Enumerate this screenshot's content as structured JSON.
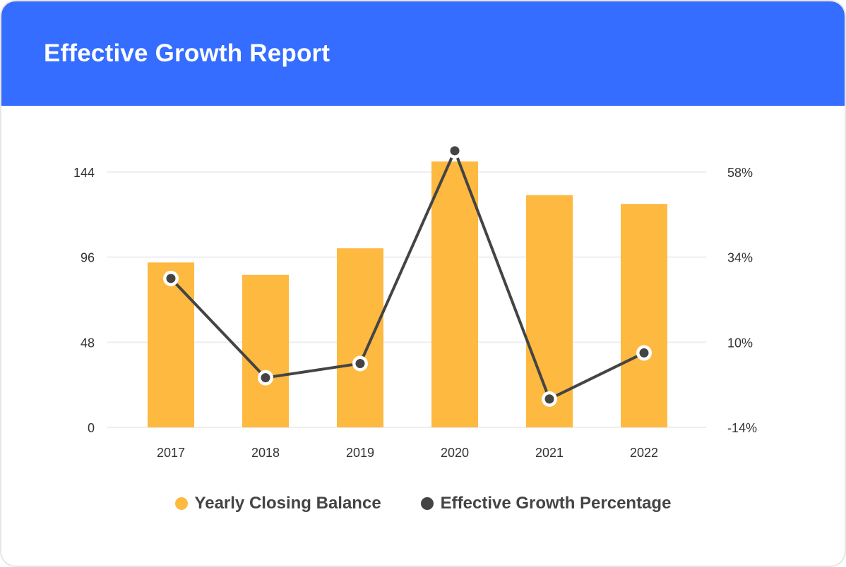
{
  "header": {
    "title": "Effective Growth Report"
  },
  "colors": {
    "header": "#346dff",
    "bar": "#fdb940",
    "line": "#444444",
    "grid": "#eeeeee"
  },
  "chart_data": {
    "type": "bar+line",
    "title": "",
    "categories": [
      "2017",
      "2018",
      "2019",
      "2020",
      "2021",
      "2022"
    ],
    "series": [
      {
        "name": "Yearly Closing Balance",
        "type": "bar",
        "axis": "left",
        "values": [
          93,
          86,
          101,
          150,
          131,
          126
        ]
      },
      {
        "name": "Effective Growth Percentage",
        "type": "line",
        "axis": "right",
        "values": [
          28,
          0,
          4,
          64,
          -6,
          7
        ]
      }
    ],
    "y_left": {
      "ticks": [
        0,
        48,
        96,
        144
      ],
      "tick_labels": [
        "0",
        "48",
        "96",
        "144"
      ],
      "range": [
        0,
        144
      ]
    },
    "y_right": {
      "ticks": [
        -14,
        10,
        34,
        58
      ],
      "tick_labels": [
        "-14%",
        "10%",
        "34%",
        "58%"
      ],
      "range": [
        -14,
        58
      ]
    },
    "grid": true,
    "legend_position": "bottom"
  }
}
